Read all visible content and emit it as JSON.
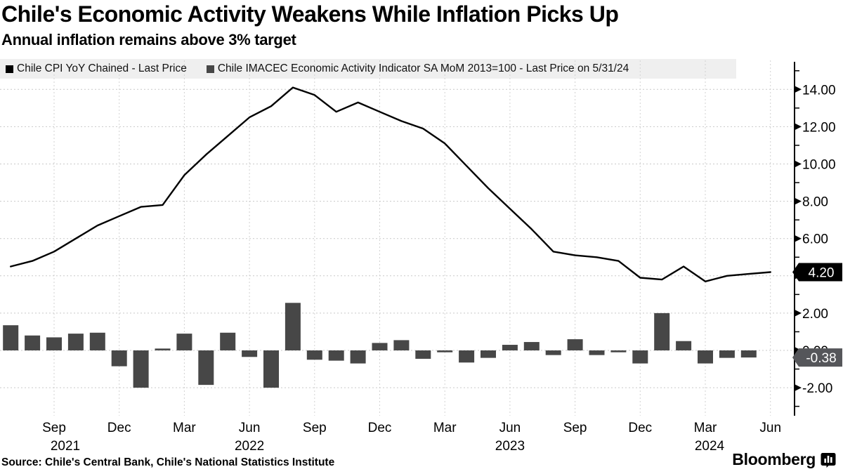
{
  "header": {
    "title": "Chile's Economic Activity Weakens While Inflation Picks Up",
    "subtitle": "Annual inflation remains above 3% target"
  },
  "legend": {
    "items": [
      {
        "label": "Chile CPI YoY Chained - Last Price",
        "color": "#000000"
      },
      {
        "label": "Chile IMACEC Economic Activity Indicator SA MoM 2013=100 - Last Price on 5/31/24",
        "color": "#474747"
      }
    ]
  },
  "footer": {
    "source": "Source: Chile's Central Bank, Chile's National Statistics Institute",
    "brand": "Bloomberg",
    "brand_icon": "bar-chart-bubble-icon"
  },
  "chart_data": {
    "type": "line+bar",
    "title": "Chile's Economic Activity Weakens While Inflation Picks Up",
    "subtitle": "Annual inflation remains above 3% target",
    "grid": true,
    "legend_position": "top",
    "x_months": [
      "Jul-21",
      "Aug-21",
      "Sep-21",
      "Oct-21",
      "Nov-21",
      "Dec-21",
      "Jan-22",
      "Feb-22",
      "Mar-22",
      "Apr-22",
      "May-22",
      "Jun-22",
      "Jul-22",
      "Aug-22",
      "Sep-22",
      "Oct-22",
      "Nov-22",
      "Dec-22",
      "Jan-23",
      "Feb-23",
      "Mar-23",
      "Apr-23",
      "May-23",
      "Jun-23",
      "Jul-23",
      "Aug-23",
      "Sep-23",
      "Oct-23",
      "Nov-23",
      "Dec-23",
      "Jan-24",
      "Feb-24",
      "Mar-24",
      "Apr-24",
      "May-24",
      "Jun-24"
    ],
    "series": [
      {
        "name": "Chile CPI YoY Chained - Last Price",
        "type": "line",
        "color": "#000000",
        "last_price": 4.2,
        "values": [
          4.5,
          4.8,
          5.3,
          6.0,
          6.7,
          7.2,
          7.7,
          7.8,
          9.4,
          10.5,
          11.5,
          12.5,
          13.1,
          14.1,
          13.7,
          12.8,
          13.3,
          12.8,
          12.3,
          11.9,
          11.1,
          9.9,
          8.7,
          7.6,
          6.5,
          5.3,
          5.1,
          5.0,
          4.8,
          3.9,
          3.8,
          4.5,
          3.7,
          4.0,
          4.1,
          4.2
        ]
      },
      {
        "name": "Chile IMACEC Economic Activity Indicator SA MoM 2013=100 - Last Price on 5/31/24",
        "type": "bar",
        "color": "#474747",
        "last_price": -0.38,
        "values": [
          1.35,
          0.8,
          0.7,
          0.9,
          0.95,
          -0.85,
          -2.0,
          0.1,
          0.9,
          -1.85,
          0.95,
          -0.35,
          -2.0,
          2.55,
          -0.5,
          -0.55,
          -0.7,
          0.4,
          0.55,
          -0.45,
          -0.1,
          -0.65,
          -0.4,
          0.3,
          0.45,
          -0.25,
          0.6,
          -0.25,
          -0.1,
          -0.7,
          2.0,
          0.5,
          -0.7,
          -0.4,
          -0.38,
          null
        ]
      }
    ],
    "y_axis": {
      "min": -3,
      "max": 15,
      "major_ticks": [
        {
          "value": 14,
          "label": "14.00"
        },
        {
          "value": 12,
          "label": "12.00"
        },
        {
          "value": 10,
          "label": "10.00"
        },
        {
          "value": 8,
          "label": "8.00"
        },
        {
          "value": 6,
          "label": "6.00"
        },
        {
          "value": 4,
          "label": ""
        },
        {
          "value": 2,
          "label": "2.00"
        },
        {
          "value": 0,
          "label": "0.00"
        },
        {
          "value": -2,
          "label": "-2.00"
        }
      ],
      "minor_tick_values": [
        15,
        13,
        11,
        9,
        7,
        5,
        3,
        1,
        -1,
        -3
      ]
    },
    "x_axis": {
      "quarter_ticks": [
        {
          "month": "Sep",
          "year": "2021"
        },
        {
          "month": "Dec"
        },
        {
          "month": "Mar"
        },
        {
          "month": "Jun",
          "year": "2022"
        },
        {
          "month": "Sep"
        },
        {
          "month": "Dec"
        },
        {
          "month": "Mar"
        },
        {
          "month": "Jun",
          "year": "2023"
        },
        {
          "month": "Sep"
        },
        {
          "month": "Dec"
        },
        {
          "month": "Mar",
          "year": "2024"
        },
        {
          "month": "Jun"
        }
      ]
    },
    "badges": [
      {
        "text": "4.20",
        "value": 4.2,
        "bg": "#000000"
      },
      {
        "text": "-0.38",
        "value": -0.38,
        "bg": "#55565a"
      }
    ]
  }
}
